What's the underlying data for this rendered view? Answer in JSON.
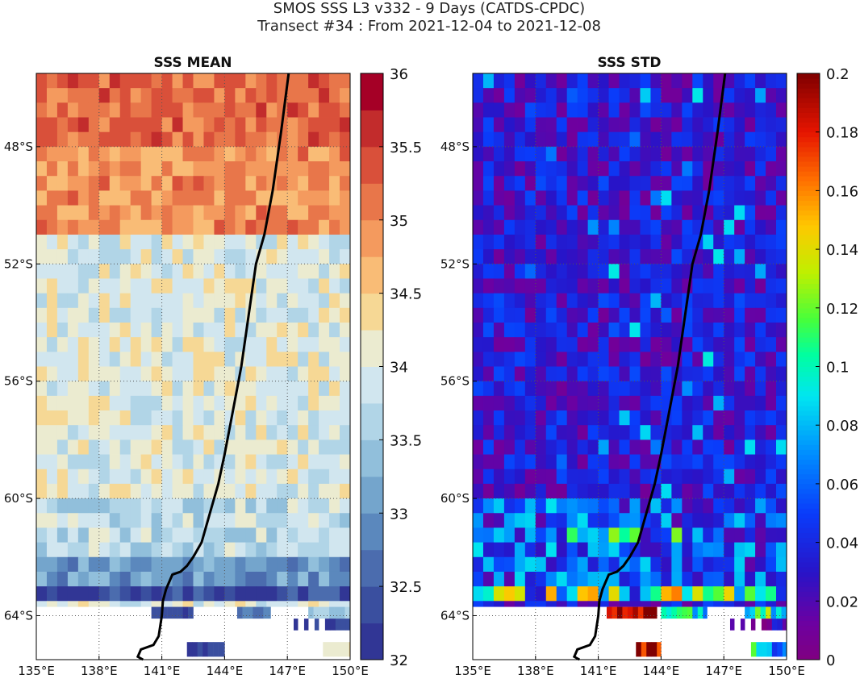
{
  "title_line1": "SMOS SSS L3 v332 - 9 Days (CATDS-CPDC)",
  "title_line2": "Transect #34 : From 2021-12-04 to 2021-12-08",
  "colors": {
    "track": "#000000",
    "grid": "#555555",
    "nodata": "#ffffff"
  },
  "chart_data": [
    {
      "type": "heatmap",
      "title": "SSS MEAN",
      "xlim": [
        135,
        150
      ],
      "ylim": [
        -65.5,
        -45.5
      ],
      "x_ticks": [
        135,
        138,
        141,
        144,
        147,
        150
      ],
      "x_tick_labels": [
        "135°E",
        "138°E",
        "141°E",
        "144°E",
        "147°E",
        "150°E"
      ],
      "y_ticks": [
        -48,
        -52,
        -56,
        -60,
        -64
      ],
      "y_tick_labels": [
        "48°S",
        "52°S",
        "56°S",
        "60°S",
        "64°S"
      ],
      "grid": true,
      "colormap": "RdYlBu_r (discrete, 16 levels)",
      "clim": [
        32,
        36
      ],
      "colorbar_ticks": [
        32,
        32.5,
        33,
        33.5,
        34,
        34.5,
        35,
        35.5,
        36
      ],
      "colorbar_tick_labels": [
        "32",
        "32.5",
        "33",
        "33.5",
        "34",
        "34.5",
        "35",
        "35.5",
        "36"
      ],
      "field_summary": [
        {
          "lat_range": [
            -48,
            -45.5
          ],
          "approx_value": 35.2
        },
        {
          "lat_range": [
            -51,
            -48
          ],
          "approx_value": 34.9
        },
        {
          "lat_range": [
            -60,
            -51
          ],
          "approx_value": 34.0
        },
        {
          "lat_range": [
            -62,
            -60
          ],
          "approx_value": 33.7
        },
        {
          "lat_range": [
            -63.2,
            -62
          ],
          "approx_value": 33.0
        },
        {
          "lat_range": [
            -63.7,
            -63.2
          ],
          "approx_value": 32.3
        }
      ]
    },
    {
      "type": "heatmap",
      "title": "SSS STD",
      "xlim": [
        135,
        150
      ],
      "ylim": [
        -65.5,
        -45.5
      ],
      "x_ticks": [
        135,
        138,
        141,
        144,
        147,
        150
      ],
      "x_tick_labels": [
        "135°E",
        "138°E",
        "141°E",
        "144°E",
        "147°E",
        "150°E"
      ],
      "y_ticks": [
        -48,
        -52,
        -56,
        -60,
        -64
      ],
      "y_tick_labels": [
        "48°S",
        "52°S",
        "56°S",
        "60°S",
        "64°S"
      ],
      "grid": true,
      "colormap": "jet-like with purple minimum",
      "clim": [
        0,
        0.2
      ],
      "colorbar_ticks": [
        0,
        0.02,
        0.04,
        0.06,
        0.08,
        0.1,
        0.12,
        0.14,
        0.16,
        0.18,
        0.2
      ],
      "colorbar_tick_labels": [
        "0",
        "0.02",
        "0.04",
        "0.06",
        "0.08",
        "0.1",
        "0.12",
        "0.14",
        "0.16",
        "0.18",
        "0.2"
      ],
      "field_summary": [
        {
          "lat_range": [
            -60,
            -45.5
          ],
          "approx_value": 0.03
        },
        {
          "lat_range": [
            -63,
            -60
          ],
          "approx_value": 0.05
        },
        {
          "lat_range": [
            -63.7,
            -63
          ],
          "approx_value": 0.09
        }
      ]
    }
  ],
  "track": {
    "lon": [
      147.06,
      146.7,
      146.3,
      145.9,
      145.5,
      145.3,
      145.1,
      144.8,
      144.4,
      144.0,
      143.7,
      143.3,
      142.9,
      142.5,
      142.2,
      141.9,
      141.5,
      141.2,
      141.05,
      141.0,
      140.85,
      140.6,
      140.0,
      139.85,
      140.1
    ],
    "lat": [
      -45.5,
      -47.5,
      -49.5,
      -51.0,
      -52.0,
      -53.0,
      -54.0,
      -55.5,
      -57.0,
      -58.5,
      -59.5,
      -60.5,
      -61.5,
      -62.0,
      -62.3,
      -62.5,
      -62.6,
      -63.1,
      -63.5,
      -64.0,
      -64.7,
      -65.0,
      -65.15,
      -65.4,
      -65.5
    ]
  }
}
